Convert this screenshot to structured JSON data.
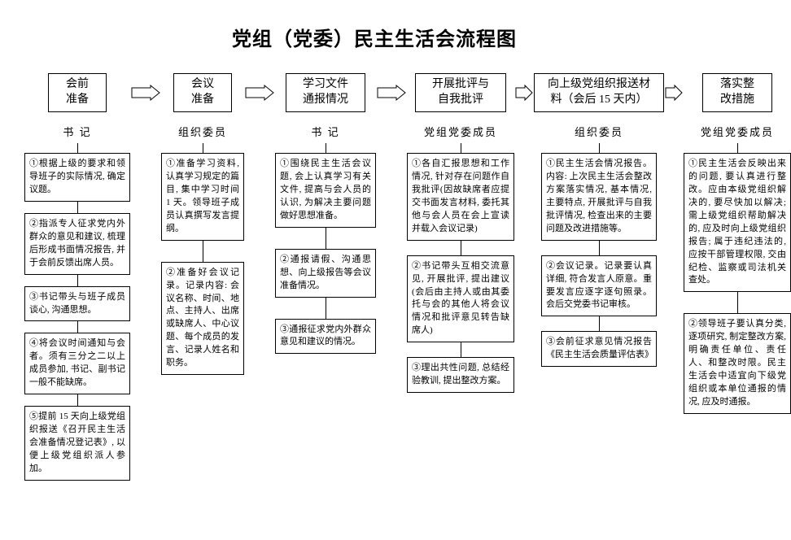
{
  "title": "党组（党委）民主生活会流程图",
  "stages": [
    {
      "label": "会前\n准备",
      "role": "书 记"
    },
    {
      "label": "会议\n准备",
      "role": "组织委员"
    },
    {
      "label": "学习文件\n通报情况",
      "role": "书 记"
    },
    {
      "label": "开展批评与\n自我批评",
      "role": "党组党委成员"
    },
    {
      "label": "向上级党组织报送材\n料（会后 15 天内）",
      "role": "组织委员"
    },
    {
      "label": "落实整\n改措施",
      "role": "党组党委成员"
    }
  ],
  "details": {
    "c1": [
      "①根据上级的要求和领导班子的实际情况, 确定议题。",
      "②指派专人征求党内外群众的意见和建议, 梳理后形成书面情况报告, 并于会前反馈出席人员。",
      "③书记带头与班子成员谈心, 沟通思想。",
      "④将会议时间通知与会者。须有三分之二以上成员参加, 书记、副书记一般不能缺席。",
      "⑤提前 15 天向上级党组织报送《召开民主生活会准备情况登记表》, 以便上级党组织派人参加。"
    ],
    "c2": [
      "①准备学习资料, 认真学习规定的篇目, 集中学习时间 1 天。领导班子成员认真撰写发言提纲。",
      "②准备好会议记录。记录内容: 会议名称、时间、地点、主持人、出席或缺席人、中心议题、每个成员的发言、记录人姓名和职务。"
    ],
    "c3": [
      "①围绕民主生活会议题, 会上认真学习有关文件, 提高与会人员的认识, 为解决主要问题做好思想准备。",
      "②通报请假、沟通思想、向上级报告等会议准备情况。",
      "③通报征求党内外群众意见和建议的情况。"
    ],
    "c4": [
      "①各自汇报思想和工作情况, 针对存在问题作自我批评(因故缺席者应提交书面发言材料, 委托其他与会人员在会上宣读并载入会议记录)",
      "②书记带头互相交流意见, 开展批评, 提出建议(会后由主持人或由其委托与会的其他人将会议情况和批评意见转告缺席人)",
      "③理出共性问题, 总结经验教训, 提出整改方案。"
    ],
    "c5": [
      "①民主生活会情况报告。内容: 上次民主生活会整改方案落实情况, 基本情况, 主要特点, 开展批评与自我批评情况, 检查出来的主要问题及改进措施等。",
      "②会议记录。记录要认真详细, 符合发言人原意。重要发言应逐字逐句照录。会后交党委书记审核。",
      "③会前征求意见情况报告《民主生活会质量评估表》"
    ],
    "c6": [
      "①民主生活会反映出来的问题, 要认真进行整改。应由本级党组织解决的, 要尽快加以解决; 需上级党组织帮助解决的, 应及时向上级党组织报告; 属于违纪违法的, 应按干部管理权限, 交由纪检、监察或司法机关查处。",
      "②领导班子要认真分类, 逐项研究, 制定整改方案, 明确责任单位、责任人、和整改时限。民主生活会中适宜向下级党组织或本单位通报的情况, 应及时通报。"
    ]
  },
  "style": {
    "border_color": "#000000",
    "background_color": "#ffffff",
    "title_fontsize": 24,
    "stage_fontsize": 14,
    "role_fontsize": 13,
    "detail_fontsize": 11,
    "arrow_stroke": "#000000",
    "arrow_fill": "#ffffff"
  }
}
